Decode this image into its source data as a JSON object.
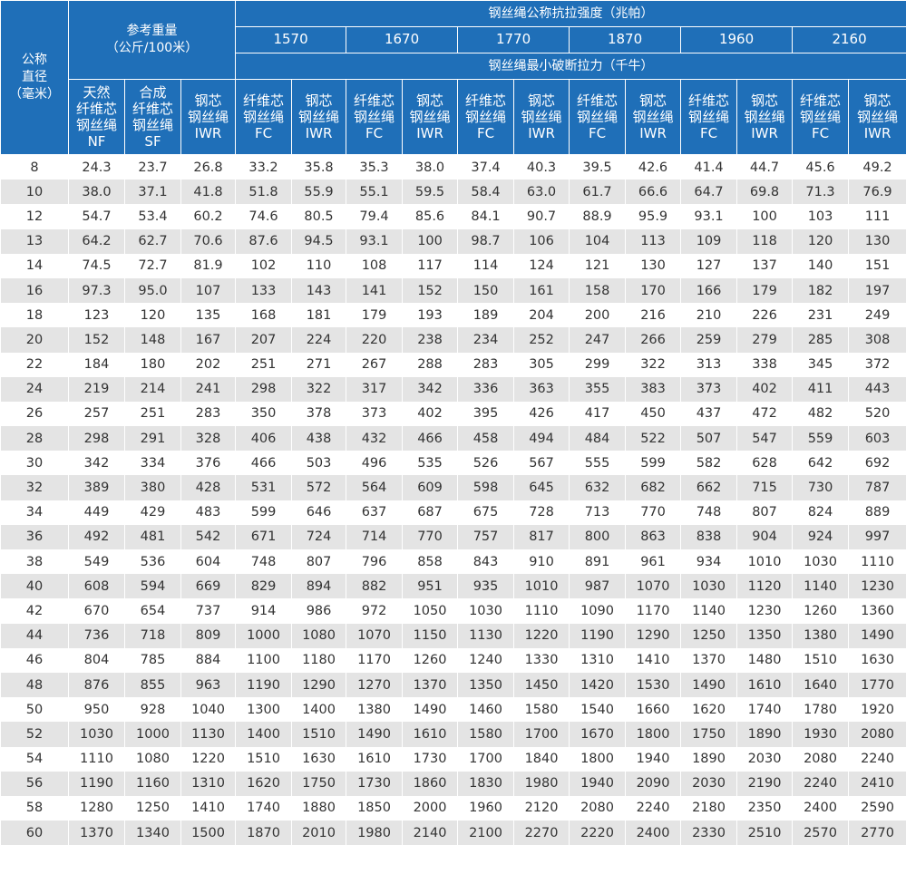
{
  "header": {
    "diameter_line1": "公称",
    "diameter_line2": "直径",
    "diameter_line3": "（毫米）",
    "ref_weight_line1": "参考重量",
    "ref_weight_line2": "（公斤/100米）",
    "strength_title": "钢丝绳公称抗拉强度（兆帕）",
    "breaking_title": "钢丝绳最小破断拉力（千牛）",
    "grades": [
      "1570",
      "1670",
      "1770",
      "1870",
      "1960",
      "2160"
    ],
    "weight_types": [
      [
        "天然",
        "纤维芯",
        "钢丝绳",
        "NF"
      ],
      [
        "合成",
        "纤维芯",
        "钢丝绳",
        "SF"
      ],
      [
        "钢芯",
        "钢丝绳",
        "IWR"
      ]
    ],
    "core_types": [
      [
        "纤维芯",
        "钢丝绳",
        "FC"
      ],
      [
        "钢芯",
        "钢丝绳",
        "IWR"
      ]
    ]
  },
  "rows": [
    [
      "8",
      "24.3",
      "23.7",
      "26.8",
      "33.2",
      "35.8",
      "35.3",
      "38.0",
      "37.4",
      "40.3",
      "39.5",
      "42.6",
      "41.4",
      "44.7",
      "45.6",
      "49.2"
    ],
    [
      "10",
      "38.0",
      "37.1",
      "41.8",
      "51.8",
      "55.9",
      "55.1",
      "59.5",
      "58.4",
      "63.0",
      "61.7",
      "66.6",
      "64.7",
      "69.8",
      "71.3",
      "76.9"
    ],
    [
      "12",
      "54.7",
      "53.4",
      "60.2",
      "74.6",
      "80.5",
      "79.4",
      "85.6",
      "84.1",
      "90.7",
      "88.9",
      "95.9",
      "93.1",
      "100",
      "103",
      "111"
    ],
    [
      "13",
      "64.2",
      "62.7",
      "70.6",
      "87.6",
      "94.5",
      "93.1",
      "100",
      "98.7",
      "106",
      "104",
      "113",
      "109",
      "118",
      "120",
      "130"
    ],
    [
      "14",
      "74.5",
      "72.7",
      "81.9",
      "102",
      "110",
      "108",
      "117",
      "114",
      "124",
      "121",
      "130",
      "127",
      "137",
      "140",
      "151"
    ],
    [
      "16",
      "97.3",
      "95.0",
      "107",
      "133",
      "143",
      "141",
      "152",
      "150",
      "161",
      "158",
      "170",
      "166",
      "179",
      "182",
      "197"
    ],
    [
      "18",
      "123",
      "120",
      "135",
      "168",
      "181",
      "179",
      "193",
      "189",
      "204",
      "200",
      "216",
      "210",
      "226",
      "231",
      "249"
    ],
    [
      "20",
      "152",
      "148",
      "167",
      "207",
      "224",
      "220",
      "238",
      "234",
      "252",
      "247",
      "266",
      "259",
      "279",
      "285",
      "308"
    ],
    [
      "22",
      "184",
      "180",
      "202",
      "251",
      "271",
      "267",
      "288",
      "283",
      "305",
      "299",
      "322",
      "313",
      "338",
      "345",
      "372"
    ],
    [
      "24",
      "219",
      "214",
      "241",
      "298",
      "322",
      "317",
      "342",
      "336",
      "363",
      "355",
      "383",
      "373",
      "402",
      "411",
      "443"
    ],
    [
      "26",
      "257",
      "251",
      "283",
      "350",
      "378",
      "373",
      "402",
      "395",
      "426",
      "417",
      "450",
      "437",
      "472",
      "482",
      "520"
    ],
    [
      "28",
      "298",
      "291",
      "328",
      "406",
      "438",
      "432",
      "466",
      "458",
      "494",
      "484",
      "522",
      "507",
      "547",
      "559",
      "603"
    ],
    [
      "30",
      "342",
      "334",
      "376",
      "466",
      "503",
      "496",
      "535",
      "526",
      "567",
      "555",
      "599",
      "582",
      "628",
      "642",
      "692"
    ],
    [
      "32",
      "389",
      "380",
      "428",
      "531",
      "572",
      "564",
      "609",
      "598",
      "645",
      "632",
      "682",
      "662",
      "715",
      "730",
      "787"
    ],
    [
      "34",
      "449",
      "429",
      "483",
      "599",
      "646",
      "637",
      "687",
      "675",
      "728",
      "713",
      "770",
      "748",
      "807",
      "824",
      "889"
    ],
    [
      "36",
      "492",
      "481",
      "542",
      "671",
      "724",
      "714",
      "770",
      "757",
      "817",
      "800",
      "863",
      "838",
      "904",
      "924",
      "997"
    ],
    [
      "38",
      "549",
      "536",
      "604",
      "748",
      "807",
      "796",
      "858",
      "843",
      "910",
      "891",
      "961",
      "934",
      "1010",
      "1030",
      "1110"
    ],
    [
      "40",
      "608",
      "594",
      "669",
      "829",
      "894",
      "882",
      "951",
      "935",
      "1010",
      "987",
      "1070",
      "1030",
      "1120",
      "1140",
      "1230"
    ],
    [
      "42",
      "670",
      "654",
      "737",
      "914",
      "986",
      "972",
      "1050",
      "1030",
      "1110",
      "1090",
      "1170",
      "1140",
      "1230",
      "1260",
      "1360"
    ],
    [
      "44",
      "736",
      "718",
      "809",
      "1000",
      "1080",
      "1070",
      "1150",
      "1130",
      "1220",
      "1190",
      "1290",
      "1250",
      "1350",
      "1380",
      "1490"
    ],
    [
      "46",
      "804",
      "785",
      "884",
      "1100",
      "1180",
      "1170",
      "1260",
      "1240",
      "1330",
      "1310",
      "1410",
      "1370",
      "1480",
      "1510",
      "1630"
    ],
    [
      "48",
      "876",
      "855",
      "963",
      "1190",
      "1290",
      "1270",
      "1370",
      "1350",
      "1450",
      "1420",
      "1530",
      "1490",
      "1610",
      "1640",
      "1770"
    ],
    [
      "50",
      "950",
      "928",
      "1040",
      "1300",
      "1400",
      "1380",
      "1490",
      "1460",
      "1580",
      "1540",
      "1660",
      "1620",
      "1740",
      "1780",
      "1920"
    ],
    [
      "52",
      "1030",
      "1000",
      "1130",
      "1400",
      "1510",
      "1490",
      "1610",
      "1580",
      "1700",
      "1670",
      "1800",
      "1750",
      "1890",
      "1930",
      "2080"
    ],
    [
      "54",
      "1110",
      "1080",
      "1220",
      "1510",
      "1630",
      "1610",
      "1730",
      "1700",
      "1840",
      "1800",
      "1940",
      "1890",
      "2030",
      "2080",
      "2240"
    ],
    [
      "56",
      "1190",
      "1160",
      "1310",
      "1620",
      "1750",
      "1730",
      "1860",
      "1830",
      "1980",
      "1940",
      "2090",
      "2030",
      "2190",
      "2240",
      "2410"
    ],
    [
      "58",
      "1280",
      "1250",
      "1410",
      "1740",
      "1880",
      "1850",
      "2000",
      "1960",
      "2120",
      "2080",
      "2240",
      "2180",
      "2350",
      "2400",
      "2590"
    ],
    [
      "60",
      "1370",
      "1340",
      "1500",
      "1870",
      "2010",
      "1980",
      "2140",
      "2100",
      "2270",
      "2220",
      "2400",
      "2330",
      "2510",
      "2570",
      "2770"
    ]
  ]
}
